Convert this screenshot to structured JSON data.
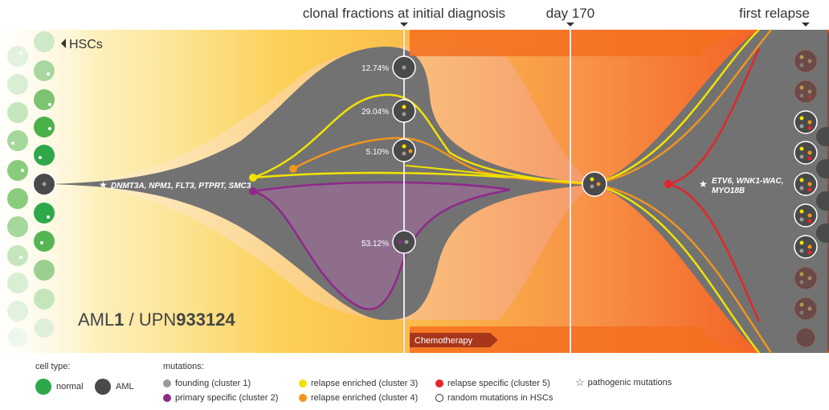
{
  "header": {
    "clonal_fractions_label": "clonal fractions at initial diagnosis",
    "day_label": "day 170",
    "relapse_label": "first relapse"
  },
  "hsc_label": "HSCs",
  "patient": {
    "prefix": "AML",
    "number": "1",
    "separator": " / UPN",
    "upn": "933124"
  },
  "founding_mutations": "DNMT3A, NPM1, FLT3, PTPRT, SMC3",
  "relapse_mutations": {
    "line1": "ETV6, WNK1-WAC,",
    "line2": "MYO18B"
  },
  "clones": [
    {
      "fraction": "12.74%",
      "cluster": "founding (cluster 1)"
    },
    {
      "fraction": "29.04%",
      "cluster": "relapse enriched (cluster 3)"
    },
    {
      "fraction": "5.10%",
      "cluster": "relapse enriched (cluster 4)"
    },
    {
      "fraction": "53.12%",
      "cluster": "primary specific (cluster 2)"
    }
  ],
  "treatment": "Chemotherapy",
  "legend": {
    "cell_type_heading": "cell type:",
    "cell_types": [
      {
        "label": "normal",
        "color": "#2ea84a"
      },
      {
        "label": "AML",
        "color": "#4a4a4a"
      }
    ],
    "mutations_heading": "mutations:",
    "mutations": [
      {
        "label": "founding (cluster 1)",
        "color": "#9b9b9b",
        "icon": "gray-dot-icon"
      },
      {
        "label": "primary specific (cluster 2)",
        "color": "#8e2a8a",
        "icon": "purple-dot-icon"
      },
      {
        "label": "relapse enriched (cluster 3)",
        "color": "#f2e200",
        "icon": "yellow-dot-icon"
      },
      {
        "label": "relapse enriched (cluster 4)",
        "color": "#f0951e",
        "icon": "orange-dot-icon"
      },
      {
        "label": "relapse specific (cluster 5)",
        "color": "#e3262b",
        "icon": "red-dot-icon"
      },
      {
        "label": "random mutations in HSCs",
        "color": "#ffffff",
        "icon": "hollow-dot-icon"
      },
      {
        "label": "pathogenic mutations",
        "icon": "star-icon"
      }
    ]
  },
  "colors": {
    "aml": "#707070",
    "dark_node": "#4a4a4a",
    "cluster2_fill": "#8f6e8c",
    "relapse_panel": "#7a504b",
    "normal_green": "#2ea84a",
    "background_start": "#fdf7d8",
    "background_end": "#f25b1c"
  }
}
